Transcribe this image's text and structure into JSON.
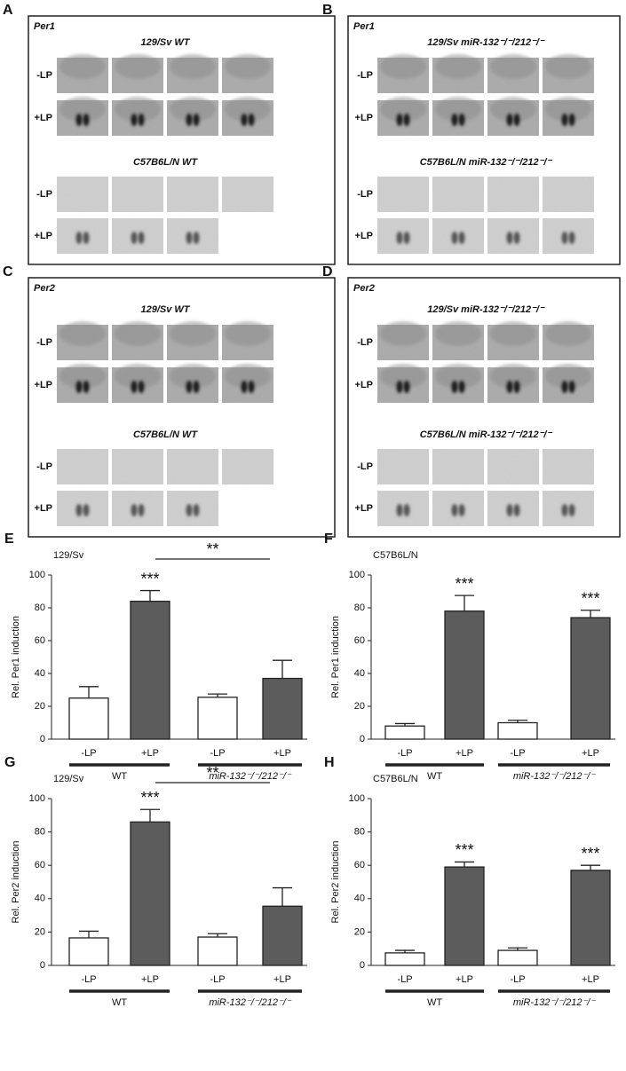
{
  "figure": {
    "panels": [
      {
        "letter": "A",
        "gene": "Per1",
        "sections": [
          {
            "title": "129/Sv WT",
            "rows": [
              "-LP",
              "+LP"
            ]
          },
          {
            "title": "C57B6L/N WT",
            "rows": [
              "-LP",
              "+LP"
            ]
          }
        ]
      },
      {
        "letter": "B",
        "gene": "Per1",
        "sections": [
          {
            "title": "129/Sv miR-132⁻/⁻/212⁻/⁻",
            "rows": [
              "-LP",
              "+LP"
            ]
          },
          {
            "title": "C57B6L/N miR-132⁻/⁻/212⁻/⁻",
            "rows": [
              "-LP",
              "+LP"
            ]
          }
        ]
      },
      {
        "letter": "C",
        "gene": "Per2",
        "sections": [
          {
            "title": "129/Sv WT",
            "rows": [
              "-LP",
              "+LP"
            ]
          },
          {
            "title": "C57B6L/N WT",
            "rows": [
              "-LP",
              "+LP"
            ]
          }
        ]
      },
      {
        "letter": "D",
        "gene": "Per2",
        "sections": [
          {
            "title": "129/Sv miR-132⁻/⁻/212⁻/⁻",
            "rows": [
              "-LP",
              "+LP"
            ]
          },
          {
            "title": "C57B6L/N miR-132⁻/⁻/212⁻/⁻",
            "rows": [
              "-LP",
              "+LP"
            ]
          }
        ]
      }
    ]
  },
  "chart_data": [
    {
      "type": "bar",
      "panel": "E",
      "title": "129/Sv",
      "ylabel": "Rel. Per1 induction",
      "categories": [
        "-LP",
        "+LP",
        "-LP",
        "+LP"
      ],
      "values": [
        25,
        84,
        25.5,
        37
      ],
      "errors": [
        7,
        6.5,
        2,
        11
      ],
      "colors": [
        "#ffffff",
        "#5c5c5c",
        "#ffffff",
        "#5c5c5c"
      ],
      "ylim": [
        0,
        100
      ],
      "yticks": [
        0,
        20,
        40,
        60,
        80,
        100
      ],
      "groups": [
        {
          "label": "WT",
          "categories": [
            0,
            1
          ]
        },
        {
          "label": "miR-132⁻/⁻/212⁻/⁻",
          "categories": [
            2,
            3
          ]
        }
      ],
      "annotations": [
        {
          "text": "***",
          "category": 1
        }
      ],
      "brackets": [
        {
          "text": "**",
          "from": 1,
          "to": 3
        }
      ]
    },
    {
      "type": "bar",
      "panel": "F",
      "title": "C57B6L/N",
      "ylabel": "Rel. Per1 induction",
      "categories": [
        "-LP",
        "+LP",
        "-LP",
        "+LP"
      ],
      "values": [
        8,
        78,
        10,
        74
      ],
      "errors": [
        1.5,
        9.5,
        1.5,
        4.5
      ],
      "colors": [
        "#ffffff",
        "#5c5c5c",
        "#ffffff",
        "#5c5c5c"
      ],
      "ylim": [
        0,
        100
      ],
      "yticks": [
        0,
        20,
        40,
        60,
        80,
        100
      ],
      "groups": [
        {
          "label": "WT",
          "categories": [
            0,
            1
          ]
        },
        {
          "label": "miR-132⁻/⁻/212⁻/⁻",
          "categories": [
            2,
            3
          ]
        }
      ],
      "annotations": [
        {
          "text": "***",
          "category": 1
        },
        {
          "text": "***",
          "category": 3
        }
      ]
    },
    {
      "type": "bar",
      "panel": "G",
      "title": "129/Sv",
      "ylabel": "Rel. Per2 induction",
      "categories": [
        "-LP",
        "+LP",
        "-LP",
        "+LP"
      ],
      "values": [
        16.5,
        86,
        17,
        35.5
      ],
      "errors": [
        4,
        7.5,
        2,
        11
      ],
      "colors": [
        "#ffffff",
        "#5c5c5c",
        "#ffffff",
        "#5c5c5c"
      ],
      "ylim": [
        0,
        100
      ],
      "yticks": [
        0,
        20,
        40,
        60,
        80,
        100
      ],
      "groups": [
        {
          "label": "WT",
          "categories": [
            0,
            1
          ]
        },
        {
          "label": "miR-132⁻/⁻/212⁻/⁻",
          "categories": [
            2,
            3
          ]
        }
      ],
      "annotations": [
        {
          "text": "***",
          "category": 1
        }
      ],
      "brackets": [
        {
          "text": "**",
          "from": 1,
          "to": 3
        }
      ]
    },
    {
      "type": "bar",
      "panel": "H",
      "title": "C57B6L/N",
      "ylabel": "Rel. Per2 induction",
      "categories": [
        "-LP",
        "+LP",
        "-LP",
        "+LP"
      ],
      "values": [
        7.5,
        59,
        9,
        57
      ],
      "errors": [
        1.5,
        3,
        1.5,
        3
      ],
      "colors": [
        "#ffffff",
        "#5c5c5c",
        "#ffffff",
        "#5c5c5c"
      ],
      "ylim": [
        0,
        100
      ],
      "yticks": [
        0,
        20,
        40,
        60,
        80,
        100
      ],
      "groups": [
        {
          "label": "WT",
          "categories": [
            0,
            1
          ]
        },
        {
          "label": "miR-132⁻/⁻/212⁻/⁻",
          "categories": [
            2,
            3
          ]
        }
      ],
      "annotations": [
        {
          "text": "***",
          "category": 1
        },
        {
          "text": "***",
          "category": 3
        }
      ]
    }
  ]
}
